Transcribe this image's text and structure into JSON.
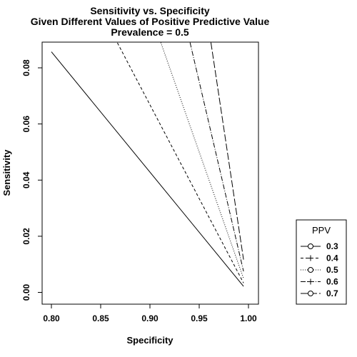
{
  "chart_data": {
    "type": "line",
    "title": [
      "Sensitivity vs. Specificity",
      "Given Different Values of Positive Predictive Value",
      "Prevalence = 0.5"
    ],
    "xlabel": "Specificity",
    "ylabel": "Sensitivity",
    "xlim": [
      0.8,
      1.0
    ],
    "ylim": [
      0.0,
      0.09
    ],
    "xticks": [
      "0.80",
      "0.85",
      "0.90",
      "0.95",
      "1.00"
    ],
    "yticks": [
      "0.00",
      "0.02",
      "0.04",
      "0.06",
      "0.08"
    ],
    "legend_title": "PPV",
    "legend_position": "right",
    "grid": false,
    "series": [
      {
        "name": "0.3",
        "dash": "none",
        "marker": "circle",
        "x": [
          0.8,
          0.995
        ],
        "y": [
          0.0857,
          0.00214
        ]
      },
      {
        "name": "0.4",
        "dash": "4,3",
        "marker": "plus",
        "x": [
          0.867,
          0.995
        ],
        "y": [
          0.0889,
          0.00333
        ]
      },
      {
        "name": "0.5",
        "dash": "1,2",
        "marker": "circle",
        "x": [
          0.911,
          0.995
        ],
        "y": [
          0.089,
          0.005
        ]
      },
      {
        "name": "0.6",
        "dash": "7,2,1,2",
        "marker": "plus",
        "x": [
          0.9407,
          0.995
        ],
        "y": [
          0.089,
          0.0075
        ]
      },
      {
        "name": "0.7",
        "dash": "10,3",
        "marker": "circle",
        "x": [
          0.9619,
          0.995
        ],
        "y": [
          0.089,
          0.01167
        ]
      }
    ]
  }
}
